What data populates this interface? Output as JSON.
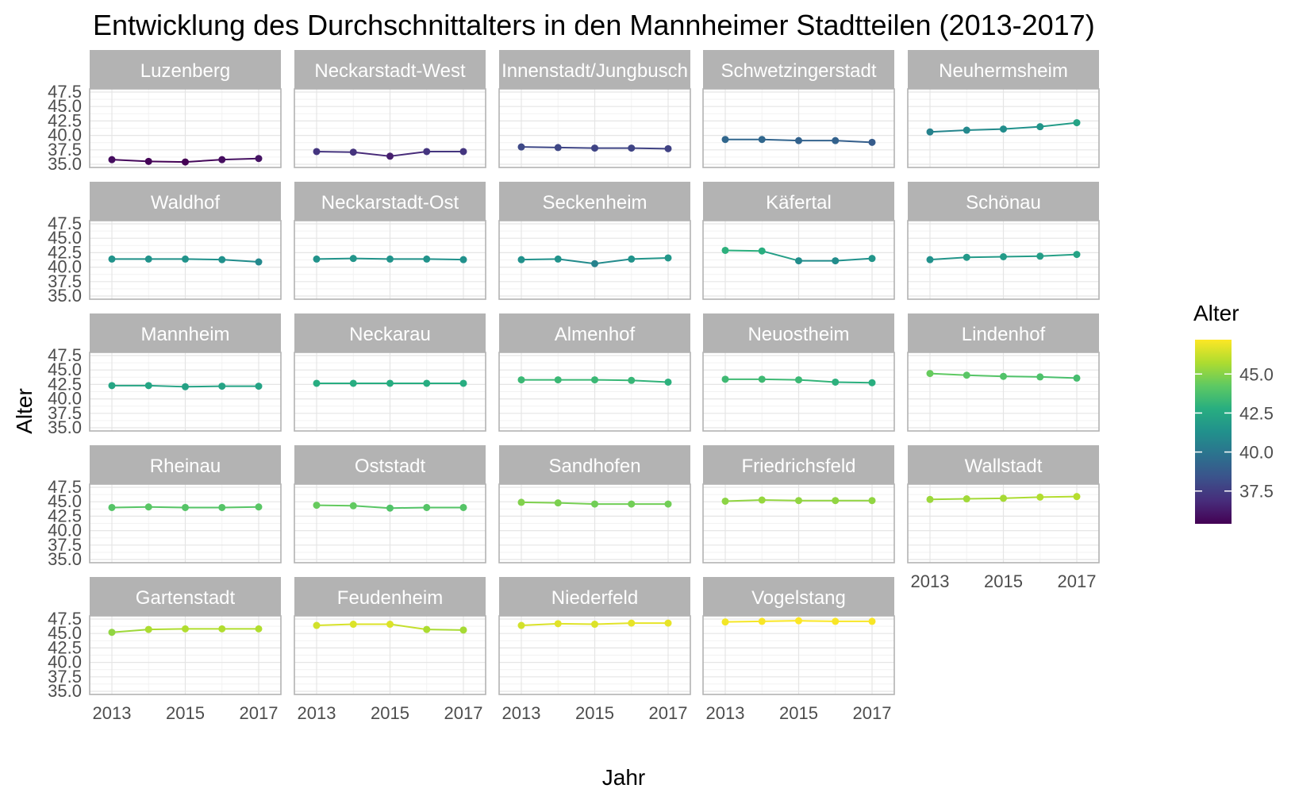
{
  "chart_data": {
    "type": "line",
    "title": "Entwicklung des Durchschnittalters in den Mannheimer Stadtteilen (2013-2017)",
    "xlabel": "Jahr",
    "ylabel": "Alter",
    "x": [
      2013,
      2014,
      2015,
      2016,
      2017
    ],
    "x_ticks": [
      "2013",
      "2015",
      "2017"
    ],
    "y_ticks": [
      "35.0",
      "37.5",
      "40.0",
      "42.5",
      "45.0",
      "47.5"
    ],
    "ylim": [
      35.0,
      47.5
    ],
    "grid": true,
    "facet_columns": 5,
    "colormap": "viridis",
    "color_range": [
      35.4,
      47.2
    ],
    "legend": {
      "title": "Alter",
      "placement": "right",
      "ticks": [
        "37.5",
        "40.0",
        "42.5",
        "45.0"
      ],
      "tick_values": [
        37.5,
        40.0,
        42.5,
        45.0
      ]
    },
    "series": [
      {
        "name": "Luzenberg",
        "values": [
          35.8,
          35.5,
          35.4,
          35.8,
          36.0
        ]
      },
      {
        "name": "Neckarstadt-West",
        "values": [
          37.2,
          37.1,
          36.4,
          37.2,
          37.2
        ]
      },
      {
        "name": "Innenstadt/Jungbusch",
        "values": [
          38.0,
          37.9,
          37.8,
          37.8,
          37.7
        ]
      },
      {
        "name": "Schwetzingerstadt",
        "values": [
          39.3,
          39.3,
          39.1,
          39.1,
          38.8
        ]
      },
      {
        "name": "Neuhermsheim",
        "values": [
          40.6,
          40.9,
          41.1,
          41.5,
          42.2
        ]
      },
      {
        "name": "Waldhof",
        "values": [
          41.4,
          41.4,
          41.4,
          41.3,
          40.9
        ]
      },
      {
        "name": "Neckarstadt-Ost",
        "values": [
          41.4,
          41.5,
          41.4,
          41.4,
          41.3
        ]
      },
      {
        "name": "Seckenheim",
        "values": [
          41.3,
          41.4,
          40.6,
          41.4,
          41.6
        ]
      },
      {
        "name": "Käfertal",
        "values": [
          42.9,
          42.8,
          41.1,
          41.1,
          41.5
        ]
      },
      {
        "name": "Schönau",
        "values": [
          41.3,
          41.7,
          41.8,
          41.9,
          42.2
        ]
      },
      {
        "name": "Mannheim",
        "values": [
          42.3,
          42.3,
          42.1,
          42.2,
          42.2
        ]
      },
      {
        "name": "Neckarau",
        "values": [
          42.7,
          42.7,
          42.7,
          42.7,
          42.7
        ]
      },
      {
        "name": "Almenhof",
        "values": [
          43.3,
          43.3,
          43.3,
          43.2,
          42.9
        ]
      },
      {
        "name": "Neuostheim",
        "values": [
          43.4,
          43.4,
          43.3,
          42.9,
          42.8
        ]
      },
      {
        "name": "Lindenhof",
        "values": [
          44.4,
          44.1,
          43.9,
          43.8,
          43.6
        ]
      },
      {
        "name": "Rheinau",
        "values": [
          44.0,
          44.1,
          44.0,
          44.0,
          44.1
        ]
      },
      {
        "name": "Oststadt",
        "values": [
          44.4,
          44.3,
          43.9,
          44.0,
          44.0
        ]
      },
      {
        "name": "Sandhofen",
        "values": [
          44.9,
          44.8,
          44.6,
          44.6,
          44.6
        ]
      },
      {
        "name": "Friedrichsfeld",
        "values": [
          45.1,
          45.3,
          45.2,
          45.2,
          45.2
        ]
      },
      {
        "name": "Wallstadt",
        "values": [
          45.4,
          45.5,
          45.6,
          45.8,
          45.9
        ]
      },
      {
        "name": "Gartenstadt",
        "values": [
          45.2,
          45.7,
          45.8,
          45.8,
          45.8
        ]
      },
      {
        "name": "Feudenheim",
        "values": [
          46.4,
          46.6,
          46.6,
          45.7,
          45.6
        ]
      },
      {
        "name": "Niederfeld",
        "values": [
          46.4,
          46.7,
          46.6,
          46.8,
          46.8
        ]
      },
      {
        "name": "Vogelstang",
        "values": [
          47.0,
          47.1,
          47.2,
          47.1,
          47.1
        ]
      }
    ]
  }
}
